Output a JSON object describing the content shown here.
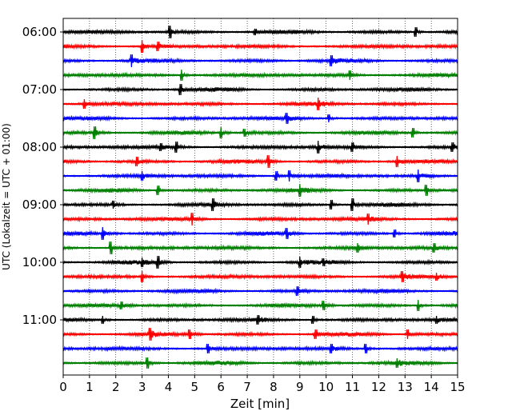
{
  "chart_data": {
    "type": "line",
    "title": "",
    "xlabel": "Zeit  [min]",
    "ylabel": "UTC (Lokalzeit = UTC + 01:00)",
    "xlim": [
      0,
      15
    ],
    "x_ticks": [
      0,
      1,
      2,
      3,
      4,
      5,
      6,
      7,
      8,
      9,
      10,
      11,
      12,
      13,
      14,
      15
    ],
    "x_tick_labels": [
      "0",
      "1",
      "2",
      "3",
      "4",
      "5",
      "6",
      "7",
      "8",
      "9",
      "10",
      "11",
      "12",
      "13",
      "14",
      "15"
    ],
    "y_tick_labels": [
      "06:00",
      "07:00",
      "08:00",
      "09:00",
      "10:00",
      "11:00"
    ],
    "y_tick_row_index": [
      0,
      4,
      8,
      12,
      16,
      20
    ],
    "minutes_per_trace": 15,
    "grid": "vertical dotted at each minute",
    "trace_colors": [
      "#000000",
      "#ff0000",
      "#0000ff",
      "#008000"
    ],
    "series": [
      {
        "start": "06:00",
        "color": "#000000",
        "events": [
          {
            "t": 4.05,
            "a": 8
          },
          {
            "t": 7.3,
            "a": 4
          },
          {
            "t": 13.4,
            "a": 6
          }
        ]
      },
      {
        "start": "06:15",
        "color": "#ff0000",
        "events": [
          {
            "t": 3.0,
            "a": 8
          },
          {
            "t": 3.6,
            "a": 6
          }
        ]
      },
      {
        "start": "06:30",
        "color": "#0000ff",
        "events": [
          {
            "t": 2.6,
            "a": 8
          },
          {
            "t": 10.2,
            "a": 7
          }
        ]
      },
      {
        "start": "06:45",
        "color": "#008000",
        "events": [
          {
            "t": 4.5,
            "a": 7
          },
          {
            "t": 10.9,
            "a": 6
          }
        ]
      },
      {
        "start": "07:00",
        "color": "#000000",
        "events": [
          {
            "t": 4.45,
            "a": 7
          }
        ]
      },
      {
        "start": "07:15",
        "color": "#ff0000",
        "events": [
          {
            "t": 0.8,
            "a": 6
          },
          {
            "t": 9.7,
            "a": 8
          }
        ]
      },
      {
        "start": "07:30",
        "color": "#0000ff",
        "events": [
          {
            "t": 8.5,
            "a": 7
          },
          {
            "t": 10.1,
            "a": 5
          }
        ]
      },
      {
        "start": "07:45",
        "color": "#008000",
        "events": [
          {
            "t": 1.2,
            "a": 8
          },
          {
            "t": 6.0,
            "a": 7
          },
          {
            "t": 6.9,
            "a": 5
          },
          {
            "t": 13.3,
            "a": 6
          }
        ]
      },
      {
        "start": "08:00",
        "color": "#000000",
        "events": [
          {
            "t": 3.7,
            "a": 5
          },
          {
            "t": 4.3,
            "a": 7
          },
          {
            "t": 9.7,
            "a": 8
          },
          {
            "t": 11.0,
            "a": 6
          },
          {
            "t": 14.8,
            "a": 6
          }
        ]
      },
      {
        "start": "08:15",
        "color": "#ff0000",
        "events": [
          {
            "t": 2.8,
            "a": 6
          },
          {
            "t": 7.8,
            "a": 8
          },
          {
            "t": 12.7,
            "a": 7
          }
        ]
      },
      {
        "start": "08:30",
        "color": "#0000ff",
        "events": [
          {
            "t": 3.0,
            "a": 6
          },
          {
            "t": 8.1,
            "a": 6
          },
          {
            "t": 8.6,
            "a": 7
          },
          {
            "t": 13.5,
            "a": 8
          }
        ]
      },
      {
        "start": "08:45",
        "color": "#008000",
        "events": [
          {
            "t": 3.6,
            "a": 6
          },
          {
            "t": 9.0,
            "a": 8
          },
          {
            "t": 13.8,
            "a": 7
          }
        ]
      },
      {
        "start": "09:00",
        "color": "#000000",
        "events": [
          {
            "t": 1.9,
            "a": 5
          },
          {
            "t": 5.7,
            "a": 8
          },
          {
            "t": 10.2,
            "a": 6
          },
          {
            "t": 11.0,
            "a": 8
          }
        ]
      },
      {
        "start": "09:15",
        "color": "#ff0000",
        "events": [
          {
            "t": 4.9,
            "a": 8
          },
          {
            "t": 11.6,
            "a": 7
          }
        ]
      },
      {
        "start": "09:30",
        "color": "#0000ff",
        "events": [
          {
            "t": 1.5,
            "a": 8
          },
          {
            "t": 8.5,
            "a": 7
          },
          {
            "t": 12.6,
            "a": 5
          }
        ]
      },
      {
        "start": "09:45",
        "color": "#008000",
        "events": [
          {
            "t": 1.8,
            "a": 8
          },
          {
            "t": 11.2,
            "a": 6
          },
          {
            "t": 14.1,
            "a": 6
          }
        ]
      },
      {
        "start": "10:00",
        "color": "#000000",
        "events": [
          {
            "t": 3.0,
            "a": 6
          },
          {
            "t": 3.6,
            "a": 8
          },
          {
            "t": 9.0,
            "a": 7
          },
          {
            "t": 9.9,
            "a": 5
          }
        ]
      },
      {
        "start": "10:15",
        "color": "#ff0000",
        "events": [
          {
            "t": 3.0,
            "a": 7
          },
          {
            "t": 12.9,
            "a": 7
          },
          {
            "t": 14.2,
            "a": 5
          }
        ]
      },
      {
        "start": "10:30",
        "color": "#0000ff",
        "events": [
          {
            "t": 8.9,
            "a": 6
          }
        ]
      },
      {
        "start": "10:45",
        "color": "#008000",
        "events": [
          {
            "t": 2.2,
            "a": 5
          },
          {
            "t": 9.9,
            "a": 6
          },
          {
            "t": 13.5,
            "a": 7
          }
        ]
      },
      {
        "start": "11:00",
        "color": "#000000",
        "events": [
          {
            "t": 1.5,
            "a": 5
          },
          {
            "t": 7.4,
            "a": 6
          },
          {
            "t": 9.5,
            "a": 5
          },
          {
            "t": 14.2,
            "a": 5
          }
        ]
      },
      {
        "start": "11:15",
        "color": "#ff0000",
        "events": [
          {
            "t": 3.3,
            "a": 8
          },
          {
            "t": 4.8,
            "a": 6
          },
          {
            "t": 9.6,
            "a": 6
          },
          {
            "t": 13.1,
            "a": 6
          }
        ]
      },
      {
        "start": "11:30",
        "color": "#0000ff",
        "events": [
          {
            "t": 5.5,
            "a": 6
          },
          {
            "t": 10.2,
            "a": 6
          },
          {
            "t": 11.5,
            "a": 6
          }
        ]
      },
      {
        "start": "11:45",
        "color": "#008000",
        "events": [
          {
            "t": 3.2,
            "a": 7
          },
          {
            "t": 12.7,
            "a": 6
          }
        ]
      }
    ]
  }
}
